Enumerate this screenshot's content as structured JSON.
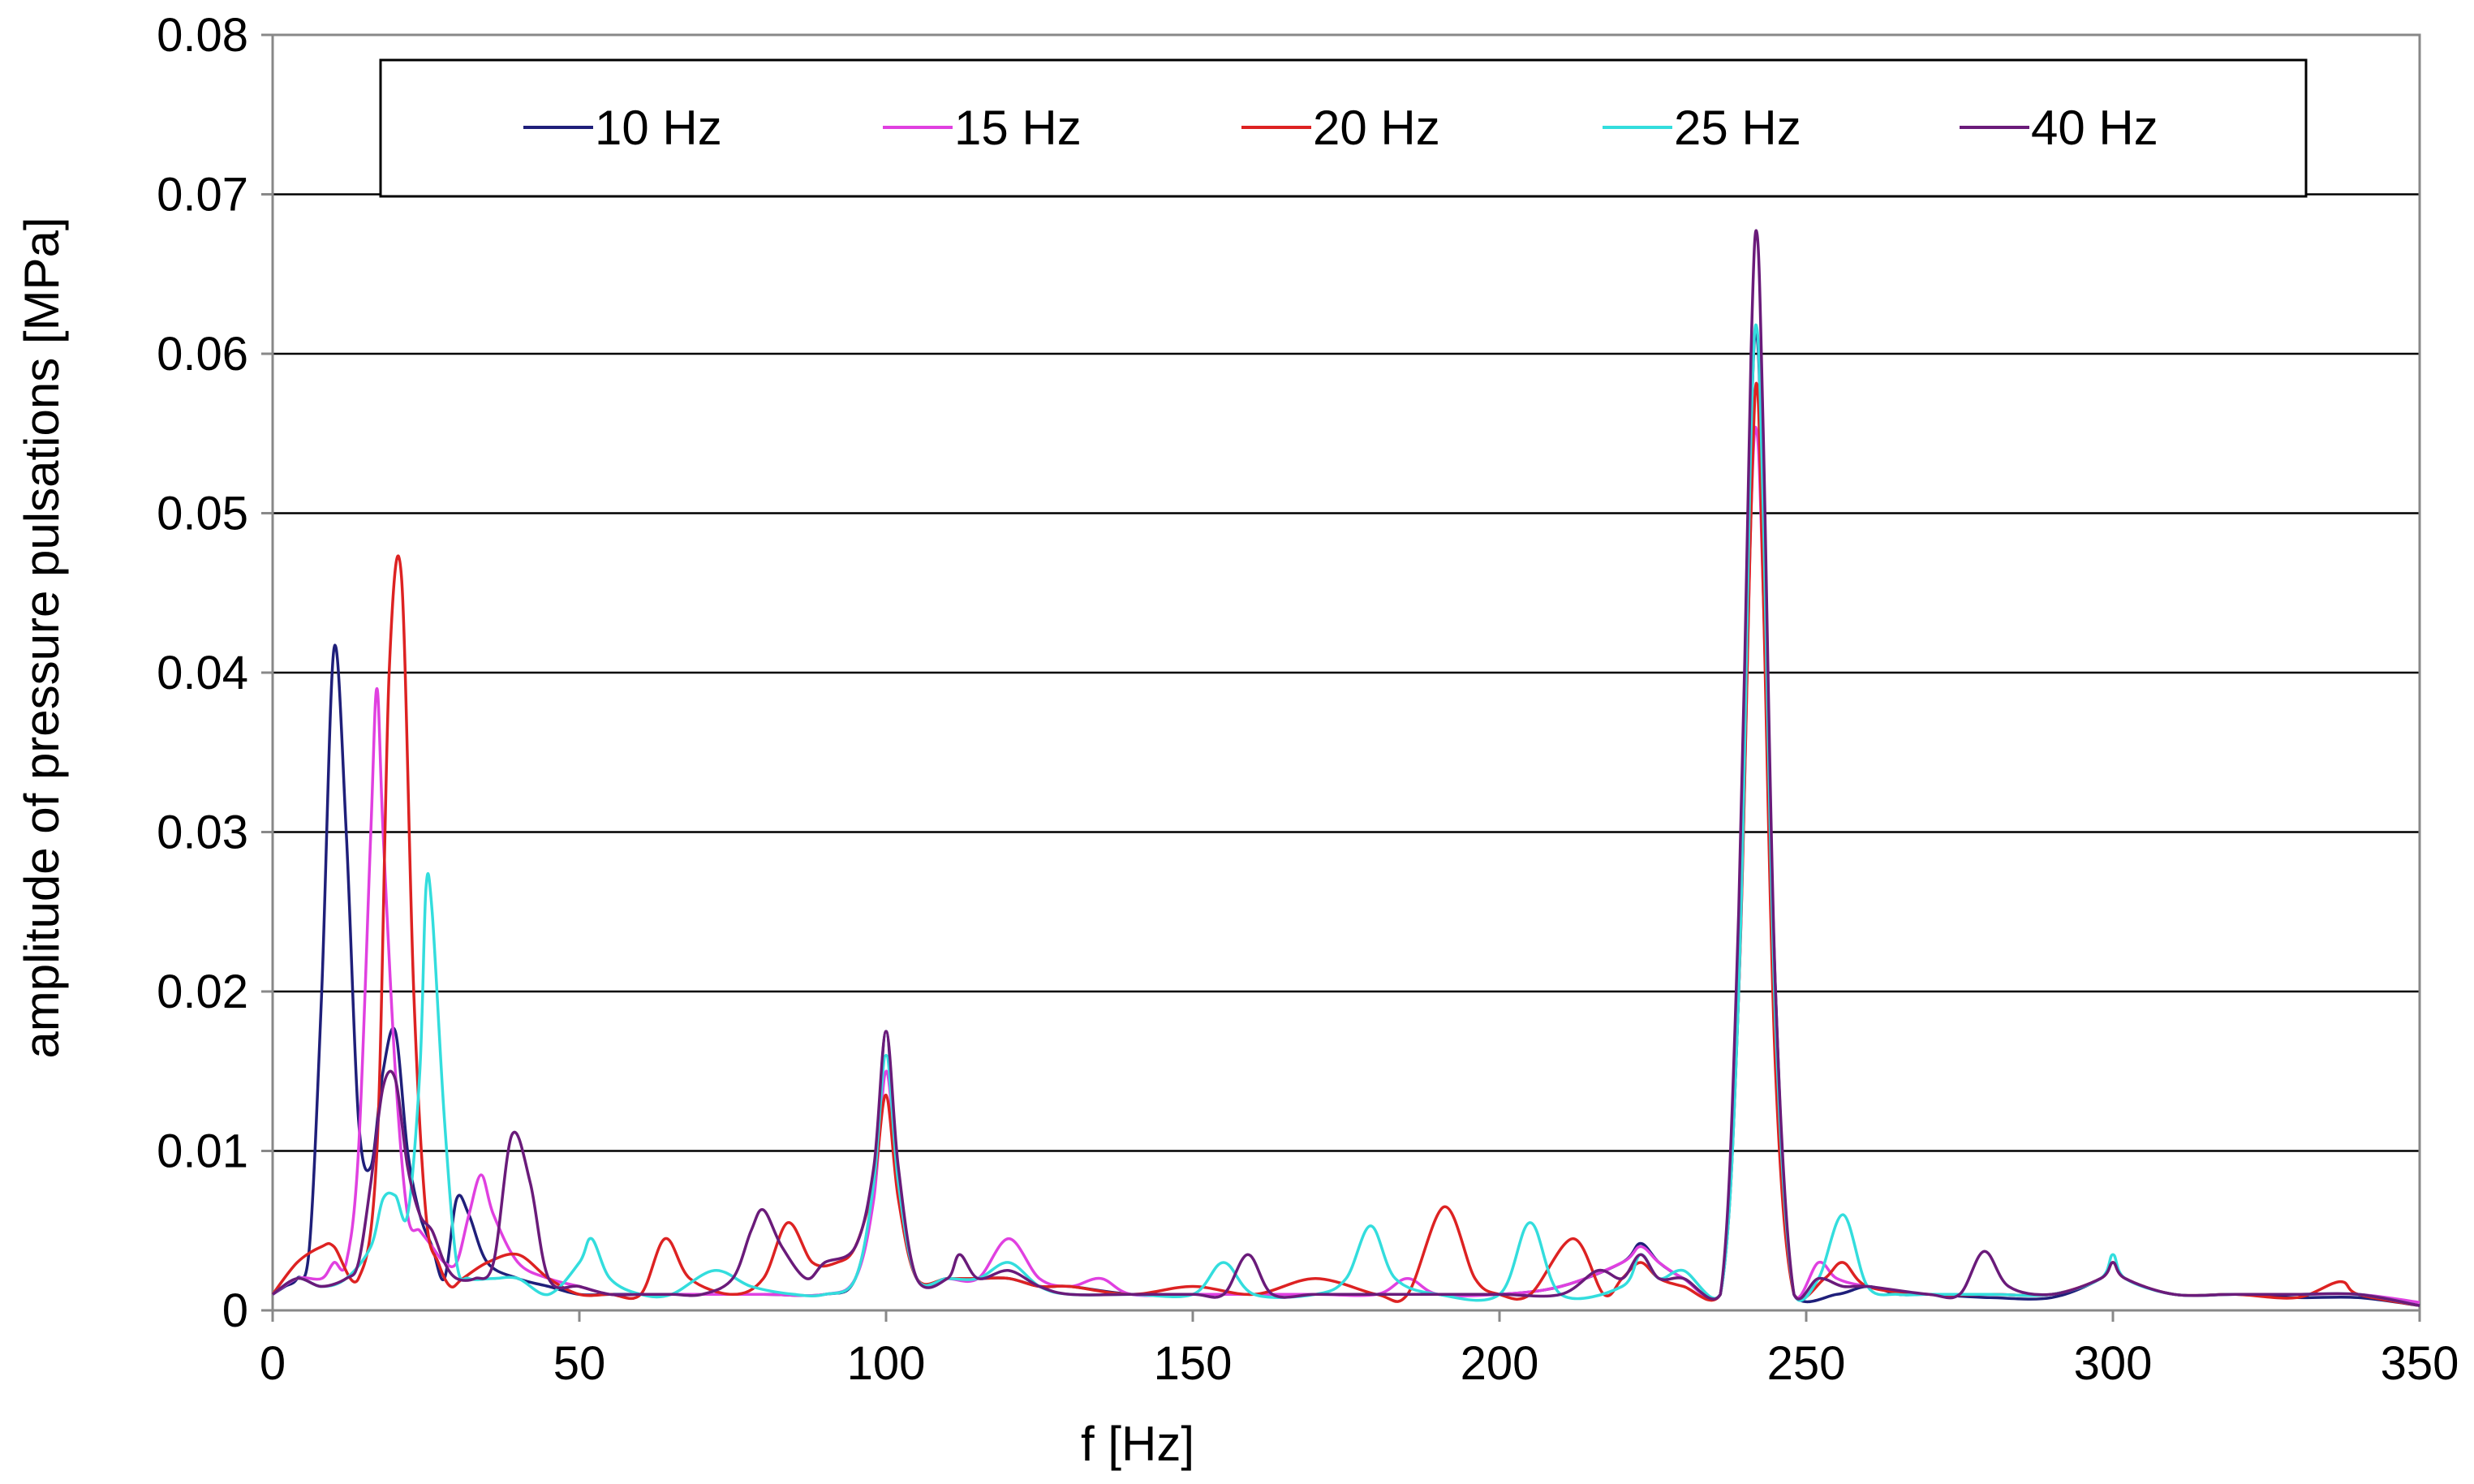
{
  "chart_data": {
    "type": "line",
    "title": "",
    "xlabel": "f [Hz]",
    "ylabel": "amplitude  of pressure pulsations [MPa]",
    "xlim": [
      0,
      350
    ],
    "ylim": [
      0,
      0.08
    ],
    "x_ticks": [
      0,
      50,
      100,
      150,
      200,
      250,
      300,
      350
    ],
    "x_tick_labels": [
      "0",
      "50",
      "100",
      "150",
      "200",
      "250",
      "300",
      "350"
    ],
    "y_ticks": [
      0,
      0.01,
      0.02,
      0.03,
      0.04,
      0.05,
      0.06,
      0.07,
      0.08
    ],
    "y_tick_labels": [
      "0",
      "0.01",
      "0.02",
      "0.03",
      "0.04",
      "0.05",
      "0.06",
      "0.07",
      "0.08"
    ],
    "grid": "horizontal",
    "legend_position": "top",
    "series": [
      {
        "name": "10 Hz",
        "color": "#1f1f7a",
        "x": [
          0,
          2,
          4,
          6,
          8,
          10,
          12,
          14,
          16,
          18,
          20,
          22,
          24,
          26,
          28,
          30,
          32,
          35,
          40,
          45,
          50,
          55,
          60,
          70,
          80,
          90,
          95,
          98,
          100,
          102,
          105,
          110,
          115,
          120,
          125,
          130,
          140,
          150,
          160,
          170,
          180,
          190,
          200,
          210,
          220,
          223,
          226,
          230,
          236,
          239,
          241,
          242,
          243,
          245,
          248,
          255,
          260,
          265,
          270,
          280,
          290,
          298,
          300,
          302,
          310,
          320,
          330,
          340,
          350
        ],
        "y": [
          0.001,
          0.0015,
          0.002,
          0.004,
          0.02,
          0.0415,
          0.03,
          0.012,
          0.009,
          0.015,
          0.0175,
          0.01,
          0.006,
          0.004,
          0.002,
          0.007,
          0.006,
          0.003,
          0.002,
          0.0015,
          0.001,
          0.001,
          0.001,
          0.001,
          0.001,
          0.001,
          0.002,
          0.008,
          0.0175,
          0.008,
          0.002,
          0.002,
          0.002,
          0.002,
          0.0015,
          0.0015,
          0.001,
          0.001,
          0.001,
          0.001,
          0.001,
          0.001,
          0.001,
          0.0015,
          0.003,
          0.0042,
          0.003,
          0.002,
          0.001,
          0.02,
          0.055,
          0.061,
          0.05,
          0.02,
          0.001,
          0.001,
          0.0015,
          0.001,
          0.001,
          0.0008,
          0.0008,
          0.002,
          0.003,
          0.002,
          0.001,
          0.001,
          0.0008,
          0.0008,
          0.0003
        ]
      },
      {
        "name": "15 Hz",
        "color": "#e040e0",
        "x": [
          0,
          4,
          8,
          10,
          12,
          14,
          16,
          17,
          18,
          20,
          22,
          24,
          26,
          28,
          30,
          32,
          34,
          36,
          40,
          45,
          50,
          55,
          60,
          70,
          80,
          90,
          95,
          98,
          100,
          102,
          105,
          110,
          115,
          120,
          125,
          130,
          135,
          140,
          150,
          160,
          170,
          180,
          185,
          190,
          200,
          210,
          220,
          223,
          226,
          230,
          236,
          239,
          241,
          242,
          243,
          245,
          248,
          252,
          255,
          260,
          270,
          280,
          290,
          298,
          300,
          302,
          310,
          320,
          330,
          340,
          350
        ],
        "y": [
          0.001,
          0.002,
          0.002,
          0.003,
          0.003,
          0.01,
          0.03,
          0.039,
          0.03,
          0.015,
          0.006,
          0.005,
          0.004,
          0.003,
          0.003,
          0.006,
          0.0085,
          0.006,
          0.003,
          0.002,
          0.0015,
          0.001,
          0.001,
          0.001,
          0.001,
          0.001,
          0.002,
          0.007,
          0.015,
          0.008,
          0.002,
          0.002,
          0.002,
          0.0045,
          0.002,
          0.0015,
          0.002,
          0.001,
          0.001,
          0.001,
          0.001,
          0.001,
          0.002,
          0.001,
          0.001,
          0.0015,
          0.003,
          0.004,
          0.003,
          0.002,
          0.001,
          0.02,
          0.05,
          0.055,
          0.045,
          0.018,
          0.001,
          0.003,
          0.002,
          0.0015,
          0.001,
          0.001,
          0.001,
          0.002,
          0.003,
          0.002,
          0.001,
          0.001,
          0.001,
          0.001,
          0.0005
        ]
      },
      {
        "name": "20 Hz",
        "color": "#dd2222",
        "x": [
          0,
          4,
          8,
          10,
          14,
          17,
          19,
          21,
          23,
          25,
          27,
          29,
          31,
          35,
          40,
          45,
          50,
          55,
          60,
          64,
          68,
          75,
          80,
          84,
          88,
          92,
          95,
          98,
          100,
          102,
          105,
          110,
          115,
          120,
          125,
          130,
          140,
          150,
          160,
          170,
          180,
          185,
          191,
          196,
          200,
          205,
          212,
          217,
          220,
          223,
          226,
          230,
          236,
          239,
          241,
          242,
          243,
          245,
          248,
          253,
          256,
          260,
          270,
          280,
          290,
          298,
          300,
          302,
          310,
          320,
          330,
          337,
          340,
          350
        ],
        "y": [
          0.001,
          0.003,
          0.004,
          0.004,
          0.002,
          0.01,
          0.04,
          0.046,
          0.02,
          0.006,
          0.003,
          0.0015,
          0.002,
          0.003,
          0.0035,
          0.002,
          0.001,
          0.001,
          0.001,
          0.0045,
          0.002,
          0.001,
          0.002,
          0.0055,
          0.003,
          0.003,
          0.004,
          0.008,
          0.0135,
          0.007,
          0.002,
          0.002,
          0.002,
          0.002,
          0.0015,
          0.0015,
          0.001,
          0.0015,
          0.001,
          0.002,
          0.001,
          0.001,
          0.0065,
          0.002,
          0.001,
          0.001,
          0.0045,
          0.001,
          0.002,
          0.003,
          0.002,
          0.0015,
          0.001,
          0.02,
          0.05,
          0.058,
          0.045,
          0.015,
          0.001,
          0.002,
          0.003,
          0.0015,
          0.001,
          0.001,
          0.001,
          0.002,
          0.003,
          0.002,
          0.001,
          0.001,
          0.0008,
          0.0018,
          0.001,
          0.0003
        ]
      },
      {
        "name": "25 Hz",
        "color": "#33dddd",
        "x": [
          0,
          4,
          8,
          12,
          16,
          18,
          20,
          22,
          24,
          25,
          26,
          28,
          30,
          32,
          36,
          40,
          45,
          50,
          52,
          55,
          60,
          65,
          72,
          78,
          85,
          90,
          95,
          98,
          100,
          102,
          105,
          110,
          115,
          120,
          125,
          130,
          140,
          150,
          155,
          160,
          170,
          175,
          179,
          183,
          190,
          200,
          205,
          210,
          220,
          223,
          226,
          230,
          236,
          239,
          241,
          242,
          243,
          245,
          248,
          252,
          256,
          260,
          265,
          270,
          280,
          290,
          298,
          300,
          302,
          310,
          320,
          330,
          340,
          350
        ],
        "y": [
          0.001,
          0.002,
          0.0015,
          0.002,
          0.004,
          0.007,
          0.0072,
          0.006,
          0.015,
          0.0265,
          0.025,
          0.012,
          0.003,
          0.002,
          0.002,
          0.002,
          0.001,
          0.003,
          0.0045,
          0.002,
          0.001,
          0.001,
          0.0025,
          0.0015,
          0.001,
          0.001,
          0.002,
          0.008,
          0.016,
          0.008,
          0.002,
          0.002,
          0.002,
          0.003,
          0.0015,
          0.001,
          0.001,
          0.001,
          0.003,
          0.001,
          0.001,
          0.002,
          0.0053,
          0.002,
          0.001,
          0.001,
          0.0055,
          0.001,
          0.0015,
          0.0035,
          0.002,
          0.0025,
          0.001,
          0.02,
          0.055,
          0.0615,
          0.05,
          0.018,
          0.001,
          0.002,
          0.006,
          0.0015,
          0.001,
          0.001,
          0.001,
          0.001,
          0.002,
          0.0035,
          0.002,
          0.001,
          0.001,
          0.001,
          0.001,
          0.0003
        ]
      },
      {
        "name": "40 Hz",
        "color": "#6a1b7a",
        "x": [
          0,
          4,
          8,
          12,
          14,
          16,
          18,
          20,
          22,
          24,
          26,
          28,
          30,
          33,
          36,
          39,
          42,
          45,
          50,
          55,
          60,
          65,
          70,
          75,
          78,
          80,
          83,
          87,
          90,
          95,
          98,
          100,
          102,
          105,
          110,
          112,
          115,
          120,
          125,
          130,
          140,
          150,
          155,
          159,
          163,
          170,
          180,
          190,
          200,
          210,
          216,
          220,
          223,
          226,
          230,
          236,
          239,
          241,
          242,
          243,
          245,
          248,
          252,
          256,
          260,
          270,
          275,
          279,
          283,
          290,
          298,
          300,
          302,
          310,
          320,
          330,
          340,
          350
        ],
        "y": [
          0.001,
          0.002,
          0.0015,
          0.002,
          0.003,
          0.008,
          0.014,
          0.0145,
          0.009,
          0.006,
          0.005,
          0.003,
          0.002,
          0.002,
          0.003,
          0.011,
          0.008,
          0.002,
          0.0015,
          0.001,
          0.001,
          0.001,
          0.001,
          0.002,
          0.005,
          0.0063,
          0.004,
          0.002,
          0.003,
          0.004,
          0.009,
          0.0175,
          0.009,
          0.002,
          0.002,
          0.0035,
          0.002,
          0.0025,
          0.0015,
          0.001,
          0.001,
          0.001,
          0.001,
          0.0035,
          0.001,
          0.001,
          0.001,
          0.001,
          0.001,
          0.001,
          0.0025,
          0.002,
          0.0035,
          0.002,
          0.002,
          0.001,
          0.025,
          0.06,
          0.0675,
          0.055,
          0.02,
          0.001,
          0.002,
          0.0015,
          0.0015,
          0.001,
          0.001,
          0.0037,
          0.0015,
          0.001,
          0.002,
          0.003,
          0.002,
          0.001,
          0.001,
          0.001,
          0.001,
          0.0003
        ]
      }
    ]
  }
}
